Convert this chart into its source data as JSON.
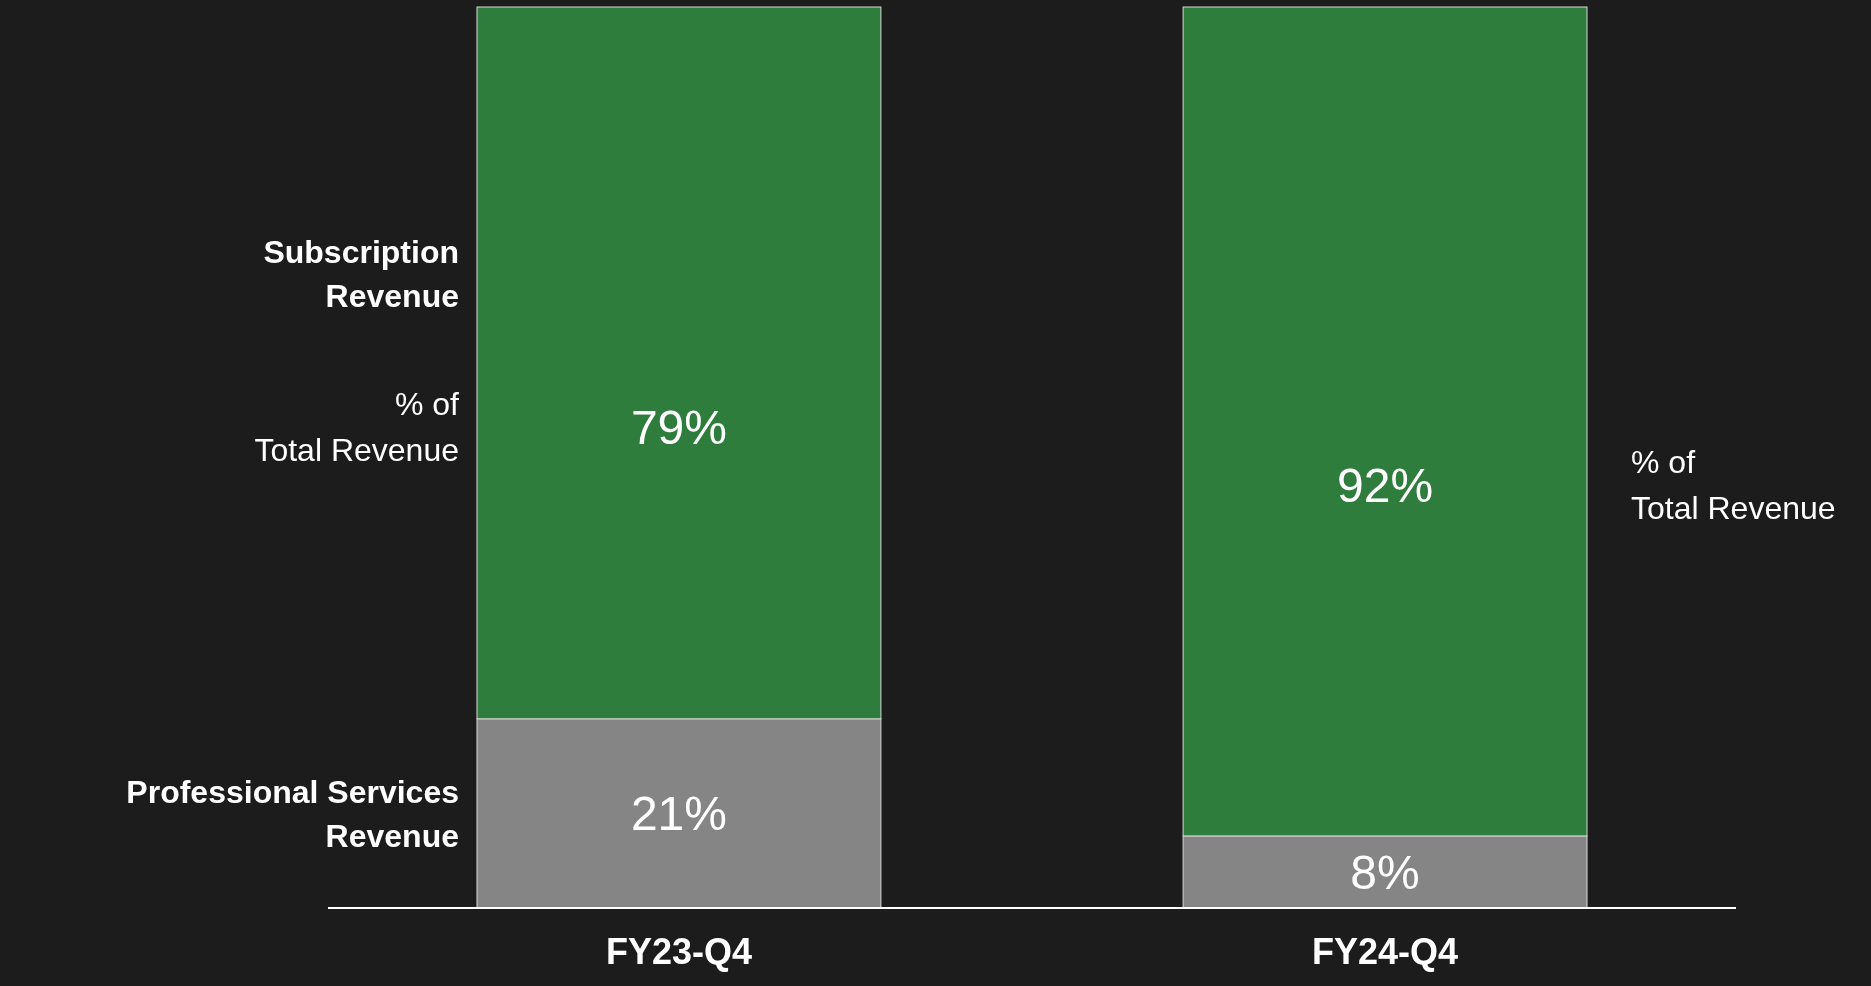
{
  "chart_data": {
    "type": "bar",
    "stacked": true,
    "categories": [
      "FY23-Q4",
      "FY24-Q4"
    ],
    "series": [
      {
        "name": "Professional Services Revenue",
        "color": "#858585",
        "values": [
          21,
          8
        ],
        "value_labels": [
          "21%",
          "8%"
        ]
      },
      {
        "name": "Subscription Revenue",
        "color": "#2e7d3c",
        "values": [
          79,
          92
        ],
        "value_labels": [
          "79%",
          "92%"
        ]
      }
    ],
    "legend": false,
    "grid": false,
    "annotations": [
      "% of Total Revenue",
      "% of Total Revenue"
    ]
  }
}
